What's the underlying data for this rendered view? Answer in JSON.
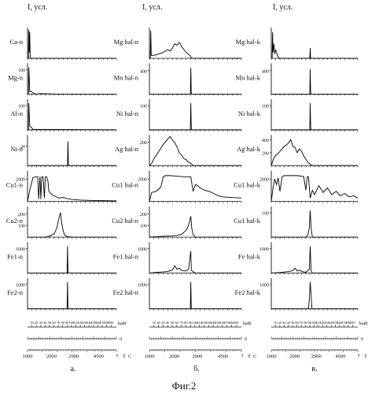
{
  "figure": {
    "caption": "Фиг.2",
    "panel_letters": [
      "а.",
      "б.",
      "в."
    ],
    "frame_label": "kadr",
    "time_label": "T",
    "temp_label": "C",
    "zero_label": "0"
  },
  "chart_data": [
    {
      "type": "line",
      "panel_label": "а.",
      "ylabel": "I, усл.",
      "x_tick_labels": [
        "10",
        "20",
        "30",
        "40",
        "50",
        "60",
        "70",
        "80",
        "90",
        "100",
        "110",
        "120",
        "130",
        "140",
        "150",
        "160",
        "170",
        "180",
        "190"
      ],
      "time_tick_labels": [
        "1000",
        "2000",
        "2900",
        "4500",
        "7"
      ],
      "traces": [
        {
          "name": "Ca-n",
          "yticks": [],
          "ymax": 1,
          "x": [
            0,
            2,
            3,
            4,
            5,
            6,
            200
          ],
          "y": [
            0,
            0,
            0.98,
            0.2,
            0.9,
            0,
            0
          ]
        },
        {
          "name": "Mg-n",
          "yticks": [
            "100"
          ],
          "ymax": 120,
          "x": [
            0,
            2,
            3,
            5,
            8,
            11,
            14,
            18,
            30,
            45,
            70,
            200
          ],
          "y": [
            0,
            0,
            110,
            10,
            12,
            6,
            4,
            0,
            2,
            1,
            0,
            0
          ]
        },
        {
          "name": "Al-n",
          "yticks": [
            "100"
          ],
          "ymax": 120,
          "x": [
            0,
            2,
            3,
            5,
            9,
            12,
            200
          ],
          "y": [
            0,
            0,
            110,
            15,
            10,
            2,
            0
          ]
        },
        {
          "name": "Ni-n",
          "yticks": [
            "20"
          ],
          "ymax": 30,
          "x": [
            0,
            90,
            91,
            92,
            93,
            200
          ],
          "y": [
            0,
            0,
            25,
            2,
            0,
            0
          ]
        },
        {
          "name": "Cu1-n",
          "yticks": [
            "2000"
          ],
          "ymax": 2600,
          "x": [
            0,
            5,
            12,
            18,
            23,
            25,
            28,
            30,
            32,
            35,
            38,
            40,
            43,
            46,
            48,
            55,
            60,
            70,
            80,
            90,
            100,
            120,
            140,
            160,
            180,
            200
          ],
          "y": [
            0,
            1000,
            2100,
            2200,
            2200,
            200,
            2200,
            200,
            2200,
            2200,
            300,
            2200,
            2200,
            1800,
            900,
            600,
            500,
            300,
            350,
            250,
            180,
            120,
            90,
            70,
            60,
            50
          ]
        },
        {
          "name": "Cu2-n",
          "yticks": [
            "100",
            "200"
          ],
          "ymax": 250,
          "x": [
            0,
            20,
            40,
            50,
            60,
            66,
            70,
            74,
            77,
            80,
            83,
            90,
            100,
            200
          ],
          "y": [
            0,
            0,
            0,
            10,
            30,
            80,
            150,
            210,
            120,
            60,
            20,
            5,
            0,
            0
          ]
        },
        {
          "name": "Fe1-n",
          "yticks": [
            "1000"
          ],
          "ymax": 1200,
          "x": [
            0,
            89,
            90,
            91,
            92,
            200
          ],
          "y": [
            0,
            0,
            1100,
            50,
            0,
            0
          ]
        },
        {
          "name": "Fe2-n",
          "yticks": [
            "1000"
          ],
          "ymax": 1200,
          "x": [
            0,
            89,
            90,
            91,
            92,
            200
          ],
          "y": [
            0,
            0,
            1100,
            60,
            0,
            0
          ]
        }
      ]
    },
    {
      "type": "line",
      "panel_label": "б.",
      "ylabel": "I, усл.",
      "x_tick_labels": [
        "10",
        "20",
        "30",
        "40",
        "50",
        "60",
        "70",
        "80",
        "90",
        "100",
        "110",
        "120",
        "130",
        "140",
        "150",
        "160",
        "170",
        "180",
        "190"
      ],
      "time_tick_labels": [
        "1000",
        "2000",
        "2900",
        "4500",
        "7"
      ],
      "traces": [
        {
          "name": "Mg hal-n",
          "yticks": [],
          "ymax": 1,
          "x": [
            0,
            2,
            3,
            4,
            10,
            20,
            30,
            40,
            45,
            50,
            55,
            60,
            65,
            70,
            75,
            80,
            88,
            92,
            200
          ],
          "y": [
            0,
            0,
            0.95,
            0.1,
            0.1,
            0.15,
            0.2,
            0.3,
            0.25,
            0.35,
            0.5,
            0.45,
            0.55,
            0.4,
            0.3,
            0.2,
            0.1,
            0,
            0
          ]
        },
        {
          "name": "Mn hal-n",
          "yticks": [
            "400"
          ],
          "ymax": 500,
          "x": [
            0,
            89,
            90,
            91,
            92,
            200
          ],
          "y": [
            0,
            0,
            450,
            30,
            0,
            0
          ]
        },
        {
          "name": "Ni hal-n",
          "yticks": [
            "100"
          ],
          "ymax": 120,
          "x": [
            0,
            89,
            90,
            91,
            92,
            200
          ],
          "y": [
            0,
            0,
            110,
            10,
            0,
            0
          ]
        },
        {
          "name": "Ag hal-n",
          "yticks": [
            "200"
          ],
          "ymax": 250,
          "x": [
            0,
            5,
            10,
            20,
            30,
            40,
            45,
            50,
            55,
            60,
            65,
            70,
            75,
            80,
            85,
            90,
            95,
            200
          ],
          "y": [
            0,
            20,
            60,
            120,
            180,
            230,
            250,
            220,
            200,
            160,
            110,
            90,
            60,
            50,
            30,
            20,
            0,
            0
          ]
        },
        {
          "name": "Cu1 hal-n",
          "yticks": [
            "2000"
          ],
          "ymax": 2600,
          "x": [
            0,
            5,
            15,
            25,
            30,
            35,
            45,
            60,
            75,
            85,
            90,
            95,
            100,
            105,
            110,
            120,
            130,
            140,
            150,
            160,
            200
          ],
          "y": [
            0,
            800,
            900,
            1300,
            2200,
            2300,
            2300,
            2250,
            2200,
            2200,
            2200,
            900,
            1500,
            1400,
            1200,
            1000,
            900,
            700,
            500,
            400,
            300
          ]
        },
        {
          "name": "Cu2 hal-n",
          "yticks": [
            "100",
            "200"
          ],
          "ymax": 250,
          "x": [
            0,
            20,
            40,
            60,
            70,
            80,
            85,
            90,
            92,
            95,
            100,
            200
          ],
          "y": [
            0,
            5,
            10,
            15,
            25,
            60,
            100,
            180,
            80,
            20,
            0,
            0
          ]
        },
        {
          "name": "Fe1 hal-n",
          "yticks": [
            "1000"
          ],
          "ymax": 1200,
          "x": [
            0,
            20,
            40,
            50,
            55,
            60,
            65,
            70,
            80,
            85,
            90,
            91,
            92,
            95,
            100,
            200
          ],
          "y": [
            0,
            30,
            60,
            120,
            300,
            150,
            200,
            100,
            80,
            150,
            900,
            150,
            100,
            50,
            0,
            0
          ]
        },
        {
          "name": "Fe2 hal-n",
          "yticks": [
            "1000"
          ],
          "ymax": 1200,
          "x": [
            0,
            89,
            90,
            91,
            92,
            200
          ],
          "y": [
            0,
            0,
            1100,
            50,
            0,
            0
          ]
        }
      ]
    },
    {
      "type": "line",
      "panel_label": "в.",
      "ylabel": "I, усл.",
      "x_tick_labels": [
        "10",
        "20",
        "30",
        "40",
        "50",
        "60",
        "70",
        "80",
        "90",
        "100",
        "110",
        "120",
        "130",
        "140",
        "150",
        "160",
        "170",
        "180",
        "190"
      ],
      "time_tick_labels": [
        "1000",
        "2000",
        "2900",
        "4500",
        "7"
      ],
      "traces": [
        {
          "name": "Mg hal-k",
          "yticks": [],
          "ymax": 1,
          "x": [
            0,
            2,
            3,
            4,
            6,
            8,
            10,
            14,
            18,
            88,
            89,
            90,
            91,
            92,
            200
          ],
          "y": [
            0,
            0,
            0.9,
            0.2,
            0.5,
            0.15,
            0.3,
            0.1,
            0,
            0,
            0,
            0.35,
            0,
            0,
            0
          ]
        },
        {
          "name": "Mn hal-k",
          "yticks": [
            "400"
          ],
          "ymax": 500,
          "x": [
            0,
            89,
            90,
            91,
            92,
            200
          ],
          "y": [
            0,
            0,
            430,
            30,
            0,
            0
          ]
        },
        {
          "name": "Ni hal-k",
          "yticks": [
            "100"
          ],
          "ymax": 120,
          "x": [
            0,
            89,
            90,
            91,
            92,
            200
          ],
          "y": [
            0,
            0,
            110,
            15,
            0,
            0
          ]
        },
        {
          "name": "Ag hal-k",
          "yticks": [
            "200",
            "400"
          ],
          "ymax": 450,
          "x": [
            0,
            5,
            10,
            15,
            20,
            25,
            30,
            35,
            40,
            45,
            50,
            55,
            60,
            65,
            70,
            75,
            80,
            85,
            90,
            95,
            200
          ],
          "y": [
            0,
            100,
            160,
            180,
            220,
            260,
            300,
            320,
            350,
            400,
            300,
            280,
            200,
            260,
            220,
            150,
            100,
            50,
            20,
            0,
            0
          ]
        },
        {
          "name": "Cu1 hal-k",
          "yticks": [
            "2000"
          ],
          "ymax": 2600,
          "x": [
            0,
            4,
            8,
            12,
            16,
            20,
            25,
            30,
            40,
            60,
            70,
            75,
            80,
            83,
            86,
            90,
            95,
            100,
            110,
            120,
            130,
            140,
            150,
            160,
            170,
            180,
            190,
            200
          ],
          "y": [
            0,
            1200,
            2000,
            1500,
            2100,
            900,
            2200,
            2300,
            2300,
            2300,
            2250,
            2200,
            1000,
            2200,
            2200,
            300,
            1000,
            600,
            1400,
            800,
            1200,
            600,
            900,
            500,
            700,
            400,
            500,
            300
          ]
        },
        {
          "name": "Cu1 hal-k",
          "yticks": [
            "100"
          ],
          "ymax": 120,
          "x": [
            0,
            80,
            85,
            88,
            90,
            92,
            95,
            200
          ],
          "y": [
            0,
            0,
            10,
            40,
            110,
            40,
            0,
            0
          ]
        },
        {
          "name": "Fe hal-k",
          "yticks": [
            "1000"
          ],
          "ymax": 1200,
          "x": [
            0,
            20,
            40,
            50,
            55,
            60,
            65,
            70,
            80,
            88,
            90,
            92,
            95,
            200
          ],
          "y": [
            0,
            20,
            60,
            100,
            200,
            80,
            120,
            60,
            30,
            150,
            1100,
            100,
            0,
            0
          ]
        },
        {
          "name": "Fe2 hal-k",
          "yticks": [
            "1000"
          ],
          "ymax": 1200,
          "x": [
            0,
            86,
            88,
            90,
            92,
            94,
            200
          ],
          "y": [
            0,
            0,
            400,
            1100,
            600,
            0,
            0
          ]
        }
      ]
    }
  ]
}
